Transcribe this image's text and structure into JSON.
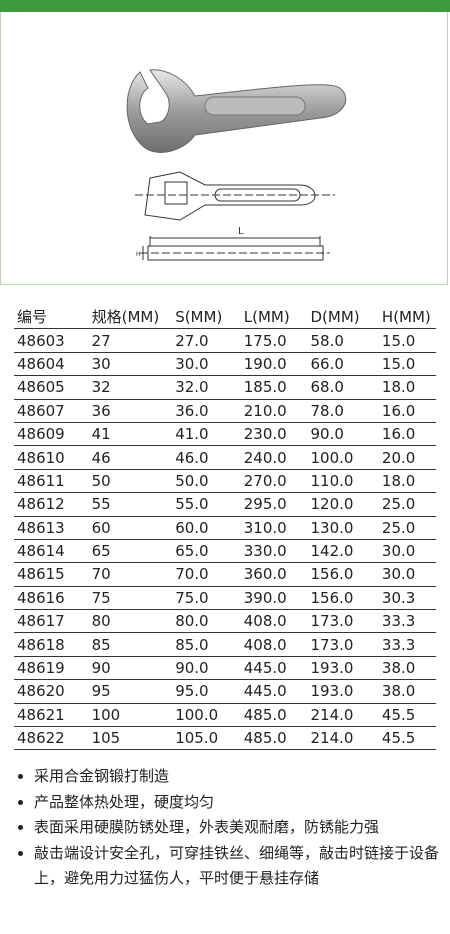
{
  "drawing": {
    "labels": [
      "L",
      "H"
    ]
  },
  "table": {
    "header": [
      "编号",
      "规格(MM)",
      "S(MM)",
      "L(MM)",
      "D(MM)",
      "H(MM)"
    ],
    "rows": [
      [
        "48603",
        "27",
        "27.0",
        "175.0",
        "58.0",
        "15.0"
      ],
      [
        "48604",
        "30",
        "30.0",
        "190.0",
        "66.0",
        "15.0"
      ],
      [
        "48605",
        "32",
        "32.0",
        "185.0",
        "68.0",
        "18.0"
      ],
      [
        "48607",
        "36",
        "36.0",
        "210.0",
        "78.0",
        "16.0"
      ],
      [
        "48609",
        "41",
        "41.0",
        "230.0",
        "90.0",
        "16.0"
      ],
      [
        "48610",
        "46",
        "46.0",
        "240.0",
        "100.0",
        "20.0"
      ],
      [
        "48611",
        "50",
        "50.0",
        "270.0",
        "110.0",
        "18.0"
      ],
      [
        "48612",
        "55",
        "55.0",
        "295.0",
        "120.0",
        "25.0"
      ],
      [
        "48613",
        "60",
        "60.0",
        "310.0",
        "130.0",
        "25.0"
      ],
      [
        "48614",
        "65",
        "65.0",
        "330.0",
        "142.0",
        "30.0"
      ],
      [
        "48615",
        "70",
        "70.0",
        "360.0",
        "156.0",
        "30.0"
      ],
      [
        "48616",
        "75",
        "75.0",
        "390.0",
        "156.0",
        "30.3"
      ],
      [
        "48617",
        "80",
        "80.0",
        "408.0",
        "173.0",
        "33.3"
      ],
      [
        "48618",
        "85",
        "85.0",
        "408.0",
        "173.0",
        "33.3"
      ],
      [
        "48619",
        "90",
        "90.0",
        "445.0",
        "193.0",
        "38.0"
      ],
      [
        "48620",
        "95",
        "95.0",
        "445.0",
        "193.0",
        "38.0"
      ],
      [
        "48621",
        "100",
        "100.0",
        "485.0",
        "214.0",
        "45.5"
      ],
      [
        "48622",
        "105",
        "105.0",
        "485.0",
        "214.0",
        "45.5"
      ]
    ]
  },
  "features": [
    "采用合金钢锻打制造",
    "产品整体热处理，硬度均匀",
    "表面采用硬膜防锈处理，外表美观耐磨，防锈能力强",
    "敲击端设计安全孔，可穿挂铁丝、细绳等，敲击时链接于设备上，避免用力过猛伤人，平时便于悬挂存储"
  ]
}
